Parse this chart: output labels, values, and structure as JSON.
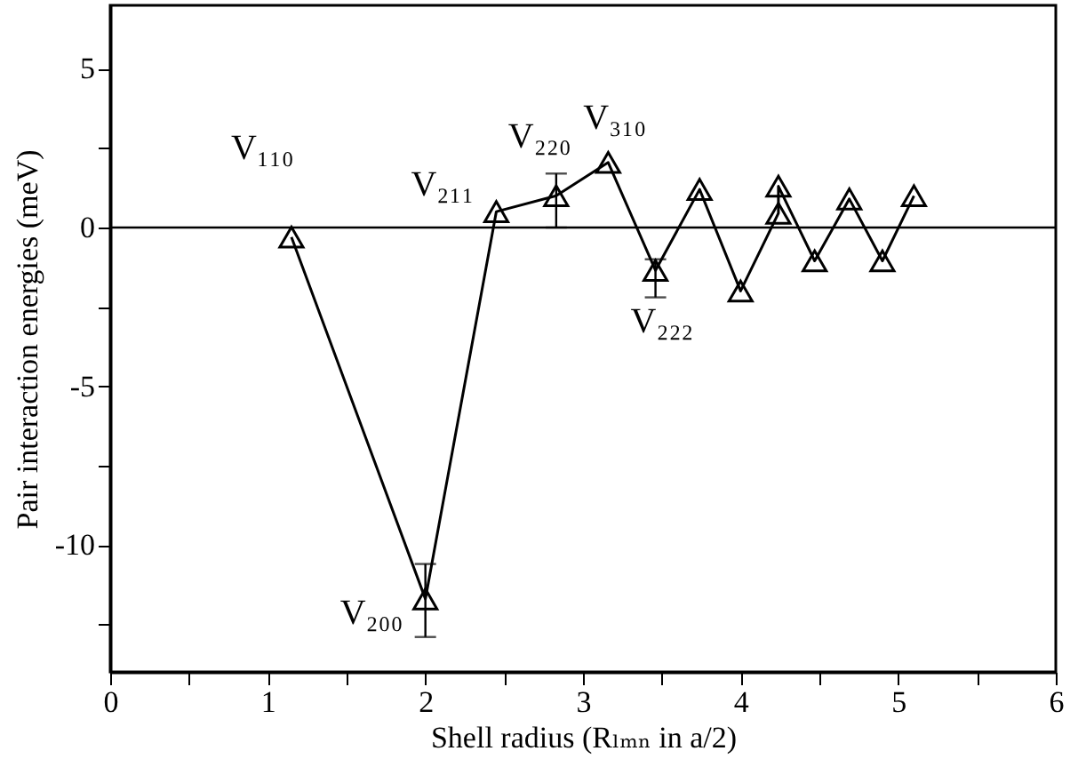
{
  "chart_data": {
    "type": "line",
    "xlabel": "Shell radius (Rₗₘₙ in a/2)",
    "ylabel": "Pair interaction energies (meV)",
    "x": [
      1.15,
      2.0,
      2.45,
      2.83,
      3.16,
      3.46,
      3.74,
      4.0,
      4.24,
      4.24,
      4.47,
      4.69,
      4.9,
      5.1
    ],
    "series": [
      {
        "color": "#000000",
        "marker": "triangle",
        "values": [
          -0.3,
          -11.7,
          0.5,
          1.0,
          2.05,
          -1.35,
          1.2,
          -2.0,
          0.45,
          1.3,
          -1.05,
          0.9,
          -1.05,
          1.0
        ],
        "errors": [
          null,
          [
            -12.9,
            -10.6
          ],
          null,
          [
            0.0,
            1.7
          ],
          null,
          [
            -2.2,
            -1.0
          ],
          null,
          null,
          null,
          null,
          null,
          null,
          null,
          null
        ]
      }
    ],
    "xlim": [
      0,
      6
    ],
    "ylim": [
      -14,
      7
    ],
    "xticks": [
      0,
      {
        "value": 0.5,
        "label": null
      },
      1,
      {
        "value": 1.5,
        "label": null
      },
      2,
      {
        "value": 2.5,
        "label": null
      },
      3,
      {
        "value": 3.5,
        "label": null
      },
      4,
      {
        "value": 4.5,
        "label": null
      },
      5,
      {
        "value": 5.5,
        "label": null
      },
      6
    ],
    "yticks": [
      {
        "value": -12.5,
        "label": null
      },
      -10,
      {
        "value": -7.5,
        "label": null
      },
      -5,
      {
        "value": -2.5,
        "label": null
      },
      0,
      {
        "value": 2.5,
        "label": null
      },
      5
    ],
    "ref_lines": [
      {
        "axis": "y",
        "value": 0,
        "color": "#000000"
      }
    ],
    "annotations": [
      {
        "text": "V₁₁₀",
        "x": 1.15,
        "y": -0.3
      },
      {
        "text": "V₂₀₀",
        "x": 2.0,
        "y": -11.7
      },
      {
        "text": "V₂₁₁",
        "x": 2.45,
        "y": 0.5
      },
      {
        "text": "V₂₂₀",
        "x": 2.83,
        "y": 1.0
      },
      {
        "text": "V₃₁₀",
        "x": 3.16,
        "y": 2.05
      },
      {
        "text": "V₂₂₂",
        "x": 3.46,
        "y": -1.35
      }
    ]
  }
}
